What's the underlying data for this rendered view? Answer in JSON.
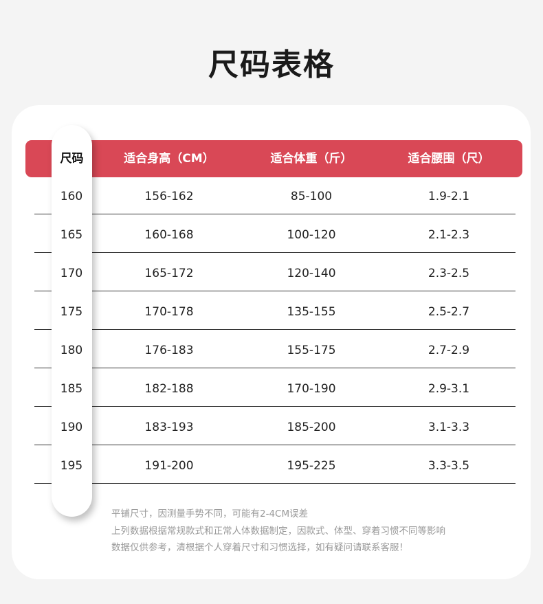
{
  "title": "尺码表格",
  "colors": {
    "header": "#d94856",
    "background": "#f4f4f4"
  },
  "table": {
    "headers": [
      "尺码",
      "适合身高（CM）",
      "适合体重（斤）",
      "适合腰围（尺）"
    ],
    "rows": [
      [
        "160",
        "156-162",
        "85-100",
        "1.9-2.1"
      ],
      [
        "165",
        "160-168",
        "100-120",
        "2.1-2.3"
      ],
      [
        "170",
        "165-172",
        "120-140",
        "2.3-2.5"
      ],
      [
        "175",
        "170-178",
        "135-155",
        "2.5-2.7"
      ],
      [
        "180",
        "176-183",
        "155-175",
        "2.7-2.9"
      ],
      [
        "185",
        "182-188",
        "170-190",
        "2.9-3.1"
      ],
      [
        "190",
        "183-193",
        "185-200",
        "3.1-3.3"
      ],
      [
        "195",
        "191-200",
        "195-225",
        "3.3-3.5"
      ]
    ]
  },
  "notes": [
    "平铺尺寸，因测量手势不同，可能有2-4CM误差",
    "上列数据根据常规款式和正常人体数据制定，因款式、体型、穿着习惯不同等影响",
    "数据仅供参考，清根据个人穿着尺寸和习惯选择，如有疑问请联系客服！"
  ]
}
